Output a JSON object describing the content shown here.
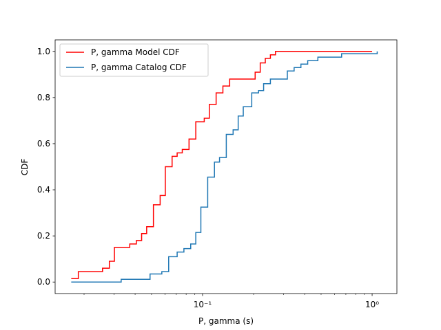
{
  "chart_data": {
    "type": "line",
    "step": true,
    "xscale": "log",
    "xlabel": "P, gamma (s)",
    "ylabel": "CDF",
    "xlim": [
      0.0135,
      1.4
    ],
    "ylim": [
      -0.05,
      1.05
    ],
    "xticks": [
      {
        "value": 0.1,
        "label": "10⁻¹"
      },
      {
        "value": 1.0,
        "label": "10⁰"
      }
    ],
    "yticks": [
      0.0,
      0.2,
      0.4,
      0.6,
      0.8,
      1.0
    ],
    "ytick_labels": [
      "0.0",
      "0.2",
      "0.4",
      "0.6",
      "0.8",
      "1.0"
    ],
    "grid": false,
    "legend_position": "top-left",
    "series": [
      {
        "name": "P, gamma Model CDF",
        "color": "#ff0000",
        "x": [
          0.0168,
          0.0185,
          0.0257,
          0.0282,
          0.0302,
          0.0372,
          0.0407,
          0.0437,
          0.0468,
          0.0513,
          0.0562,
          0.0603,
          0.0661,
          0.0708,
          0.0759,
          0.0832,
          0.0912,
          0.1023,
          0.1096,
          0.1202,
          0.1318,
          0.1445,
          0.2042,
          0.2188,
          0.2344,
          0.2512,
          0.2692,
          1.0
        ],
        "y": [
          0.015,
          0.045,
          0.06,
          0.09,
          0.15,
          0.165,
          0.18,
          0.21,
          0.24,
          0.335,
          0.375,
          0.5,
          0.545,
          0.56,
          0.575,
          0.62,
          0.695,
          0.71,
          0.77,
          0.82,
          0.85,
          0.88,
          0.91,
          0.95,
          0.97,
          0.985,
          1.0,
          1.0
        ]
      },
      {
        "name": "P, gamma Catalog CDF",
        "color": "#1f77b4",
        "x": [
          0.0168,
          0.0331,
          0.049,
          0.0575,
          0.0631,
          0.0708,
          0.0776,
          0.0851,
          0.0912,
          0.0977,
          0.1072,
          0.1175,
          0.1259,
          0.138,
          0.1514,
          0.1622,
          0.1738,
          0.195,
          0.2138,
          0.2291,
          0.2512,
          0.2692,
          0.3162,
          0.3467,
          0.3802,
          0.4169,
          0.4786,
          0.6026,
          0.6607,
          1.0,
          1.0715
        ],
        "y": [
          0.0,
          0.012,
          0.035,
          0.045,
          0.11,
          0.13,
          0.145,
          0.165,
          0.215,
          0.325,
          0.455,
          0.52,
          0.54,
          0.64,
          0.66,
          0.72,
          0.76,
          0.82,
          0.83,
          0.86,
          0.88,
          0.88,
          0.915,
          0.93,
          0.945,
          0.96,
          0.975,
          0.975,
          0.99,
          0.99,
          1.0
        ]
      }
    ]
  }
}
